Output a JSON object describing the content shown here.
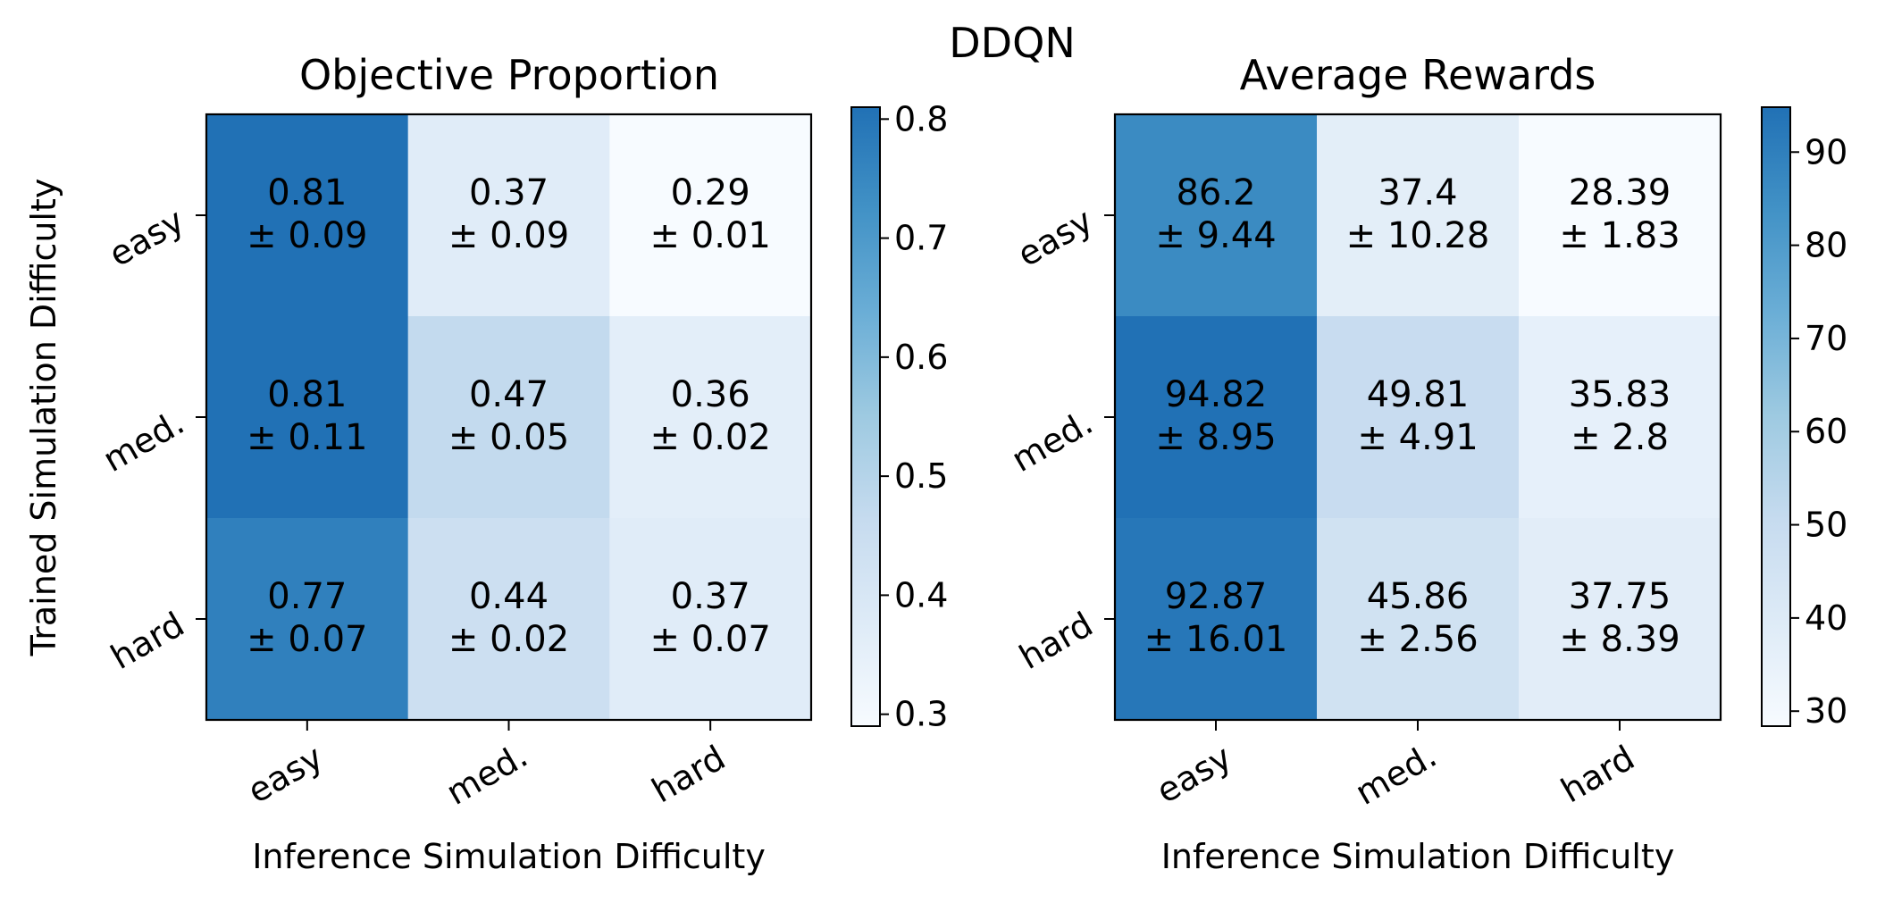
{
  "chart_data": [
    {
      "type": "heatmap",
      "suptitle": "DDQN",
      "title": "Objective Proportion",
      "xlabel": "Inference Simulation Difficulty",
      "ylabel": "Trained Simulation Difficulty",
      "x_categories": [
        "easy",
        "med.",
        "hard"
      ],
      "y_categories": [
        "easy",
        "med.",
        "hard"
      ],
      "values": [
        [
          0.81,
          0.37,
          0.29
        ],
        [
          0.81,
          0.47,
          0.36
        ],
        [
          0.77,
          0.44,
          0.37
        ]
      ],
      "cell_labels": [
        [
          [
            "0.81",
            "± 0.09"
          ],
          [
            "0.37",
            "± 0.09"
          ],
          [
            "0.29",
            "± 0.01"
          ]
        ],
        [
          [
            "0.81",
            "± 0.11"
          ],
          [
            "0.47",
            "± 0.05"
          ],
          [
            "0.36",
            "± 0.02"
          ]
        ],
        [
          [
            "0.77",
            "± 0.07"
          ],
          [
            "0.44",
            "± 0.02"
          ],
          [
            "0.37",
            "± 0.07"
          ]
        ]
      ],
      "colorbar": {
        "min": 0.29,
        "max": 0.81,
        "ticks": [
          "0.3",
          "0.4",
          "0.5",
          "0.6",
          "0.7",
          "0.8"
        ]
      },
      "colormap": [
        "#f7fbff",
        "#deebf7",
        "#c6dbef",
        "#9ecae1",
        "#6baed6",
        "#4292c6",
        "#2171b5"
      ]
    },
    {
      "type": "heatmap",
      "title": "Average Rewards",
      "xlabel": "Inference Simulation Difficulty",
      "ylabel": "",
      "x_categories": [
        "easy",
        "med.",
        "hard"
      ],
      "y_categories": [
        "easy",
        "med.",
        "hard"
      ],
      "values": [
        [
          86.2,
          37.4,
          28.39
        ],
        [
          94.82,
          49.81,
          35.83
        ],
        [
          92.87,
          45.86,
          37.75
        ]
      ],
      "cell_labels": [
        [
          [
            "86.2",
            "± 9.44"
          ],
          [
            "37.4",
            "± 10.28"
          ],
          [
            "28.39",
            "± 1.83"
          ]
        ],
        [
          [
            "94.82",
            "± 8.95"
          ],
          [
            "49.81",
            "± 4.91"
          ],
          [
            "35.83",
            "± 2.8"
          ]
        ],
        [
          [
            "92.87",
            "± 16.01"
          ],
          [
            "45.86",
            "± 2.56"
          ],
          [
            "37.75",
            "± 8.39"
          ]
        ]
      ],
      "colorbar": {
        "min": 28.39,
        "max": 94.82,
        "ticks": [
          "30",
          "40",
          "50",
          "60",
          "70",
          "80",
          "90"
        ]
      },
      "colormap": [
        "#f7fbff",
        "#deebf7",
        "#c6dbef",
        "#9ecae1",
        "#6baed6",
        "#4292c6",
        "#2171b5"
      ]
    }
  ]
}
